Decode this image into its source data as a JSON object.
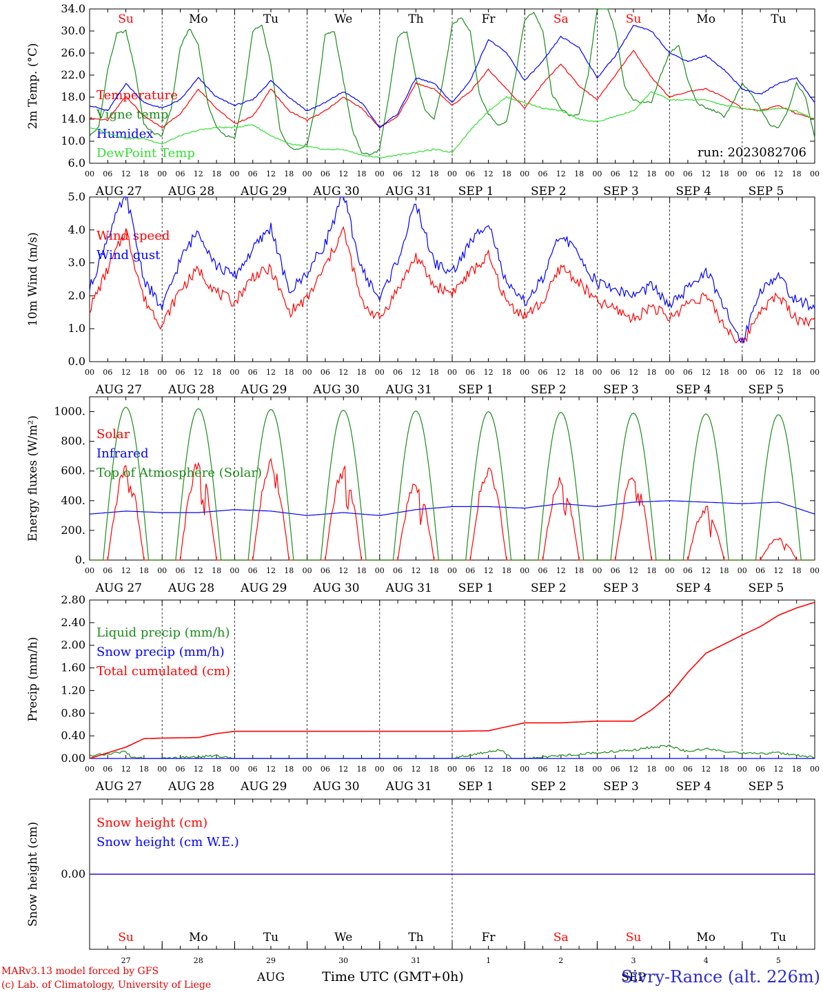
{
  "chart_data": [
    {
      "type": "line",
      "panel": "temperature",
      "ylabel": "2m Temp. (°C)",
      "ylim": [
        6.0,
        34.0
      ],
      "yticks": [
        "6.0",
        "10.0",
        "14.0",
        "18.0",
        "22.0",
        "26.0",
        "30.0",
        "34.0"
      ],
      "ytick_values": [
        6,
        10,
        14,
        18,
        22,
        26,
        30,
        34
      ],
      "dashed_y": [],
      "days_top": [
        {
          "label": "Su",
          "color": "#ff0000"
        },
        {
          "label": "Mo",
          "color": "#000000"
        },
        {
          "label": "Tu",
          "color": "#000000"
        },
        {
          "label": "We",
          "color": "#000000"
        },
        {
          "label": "Th",
          "color": "#000000"
        },
        {
          "label": "Fr",
          "color": "#000000"
        },
        {
          "label": "Sa",
          "color": "#ff0000"
        },
        {
          "label": "Su",
          "color": "#ff0000"
        },
        {
          "label": "Mo",
          "color": "#000000"
        },
        {
          "label": "Tu",
          "color": "#000000"
        }
      ],
      "annotation": "run: 2023082706",
      "series": [
        {
          "name": "Temperature",
          "color": "#ff0000",
          "x": [
            0,
            6,
            12,
            18,
            24,
            30,
            36,
            42,
            48,
            54,
            60,
            66,
            72,
            78,
            84,
            90,
            96,
            102,
            108,
            114,
            120,
            126,
            132,
            138,
            144,
            150,
            156,
            162,
            168,
            174,
            180,
            186,
            192,
            198,
            204,
            210,
            216,
            222,
            228,
            234,
            240
          ],
          "y": [
            14.2,
            13.8,
            18.2,
            14.5,
            12.5,
            15.0,
            19.5,
            16.0,
            13.2,
            14.5,
            19.5,
            15.5,
            13.8,
            15.5,
            18.0,
            16.0,
            12.5,
            14.5,
            20.5,
            19.5,
            16.5,
            19.0,
            23.0,
            19.5,
            16.0,
            20.5,
            24.0,
            20.0,
            17.5,
            22.0,
            26.5,
            21.5,
            18.0,
            19.0,
            19.5,
            18.0,
            16.0,
            15.5,
            16.5,
            15.0,
            14.0
          ]
        },
        {
          "name": "Vigne temp",
          "color": "#1a8c1a",
          "x": [
            0,
            3,
            6,
            9,
            12,
            15,
            18,
            21,
            24,
            27,
            30,
            33,
            36,
            39,
            42,
            45,
            48,
            51,
            54,
            57,
            60,
            63,
            66,
            69,
            72,
            75,
            78,
            81,
            84,
            87,
            90,
            93,
            96,
            99,
            102,
            105,
            108,
            111,
            114,
            117,
            120,
            123,
            126,
            129,
            132,
            135,
            138,
            141,
            144,
            147,
            150,
            153,
            156,
            159,
            162,
            165,
            168,
            171,
            174,
            177,
            180,
            183,
            186,
            189,
            192,
            195,
            198,
            201,
            204,
            207,
            210,
            213,
            216,
            219,
            222,
            225,
            228,
            231,
            234,
            237,
            240
          ],
          "y": [
            11.0,
            12.5,
            23.0,
            29.5,
            30.0,
            23.0,
            13.0,
            11.5,
            11.0,
            16.0,
            27.0,
            30.5,
            27.5,
            17.0,
            12.5,
            11.0,
            10.5,
            18.0,
            30.0,
            31.0,
            24.0,
            12.0,
            9.0,
            8.5,
            9.5,
            17.0,
            29.5,
            30.0,
            21.0,
            12.0,
            8.0,
            7.5,
            8.5,
            18.0,
            29.0,
            30.0,
            21.5,
            15.5,
            14.0,
            21.0,
            31.0,
            32.5,
            30.0,
            18.5,
            15.0,
            13.0,
            13.5,
            22.0,
            32.0,
            33.5,
            30.0,
            18.5,
            16.0,
            14.5,
            15.0,
            22.0,
            34.0,
            35.0,
            30.0,
            20.0,
            17.5,
            17.0,
            17.0,
            22.0,
            26.0,
            27.5,
            21.0,
            17.0,
            16.0,
            15.5,
            14.5,
            17.0,
            20.5,
            18.5,
            16.0,
            13.0,
            12.5,
            15.5,
            20.5,
            18.0,
            10.5
          ]
        },
        {
          "name": "Humidex",
          "color": "#0000ff",
          "x": [
            0,
            6,
            12,
            18,
            24,
            30,
            36,
            42,
            48,
            54,
            60,
            66,
            72,
            78,
            84,
            90,
            96,
            102,
            108,
            114,
            120,
            126,
            132,
            138,
            144,
            150,
            156,
            162,
            168,
            174,
            180,
            186,
            192,
            198,
            204,
            210,
            216,
            222,
            228,
            234,
            240
          ],
          "y": [
            16.5,
            15.5,
            20.5,
            17.0,
            16.0,
            17.5,
            21.5,
            18.0,
            16.5,
            17.5,
            21.0,
            18.0,
            15.5,
            17.0,
            19.0,
            17.0,
            12.5,
            15.0,
            21.5,
            20.5,
            17.0,
            21.0,
            28.5,
            26.0,
            21.0,
            24.5,
            29.0,
            27.0,
            21.5,
            25.5,
            31.0,
            30.0,
            26.0,
            24.5,
            25.5,
            23.0,
            19.5,
            18.5,
            20.5,
            21.5,
            17.0
          ]
        },
        {
          "name": "DewPoint Temp",
          "color": "#33dd33",
          "x": [
            0,
            6,
            12,
            18,
            24,
            30,
            36,
            42,
            48,
            54,
            60,
            66,
            72,
            78,
            84,
            90,
            96,
            102,
            108,
            114,
            120,
            126,
            132,
            138,
            144,
            150,
            156,
            162,
            168,
            174,
            180,
            186,
            192,
            198,
            204,
            210,
            216,
            222,
            228,
            234,
            240
          ],
          "y": [
            12.5,
            11.5,
            10.5,
            10.5,
            9.5,
            11.0,
            12.0,
            12.5,
            12.5,
            13.0,
            11.0,
            9.5,
            9.0,
            8.5,
            8.5,
            7.5,
            7.0,
            7.5,
            8.0,
            8.5,
            8.0,
            12.0,
            15.5,
            18.0,
            17.0,
            16.0,
            15.5,
            14.0,
            13.5,
            14.5,
            15.5,
            19.0,
            17.5,
            17.5,
            17.5,
            16.5,
            16.0,
            15.5,
            16.0,
            15.5,
            14.0
          ]
        }
      ]
    },
    {
      "type": "line",
      "panel": "wind",
      "ylabel": "10m Wind (m/s)",
      "ylim": [
        0.0,
        5.0
      ],
      "yticks": [
        "0.0",
        "1.0",
        "2.0",
        "3.0",
        "4.0",
        "5.0"
      ],
      "ytick_values": [
        0,
        1,
        2,
        3,
        4,
        5
      ],
      "dashed_y": [
        5.0
      ],
      "series": [
        {
          "name": "Wind speed",
          "color": "#ff0000",
          "x": [
            0,
            6,
            12,
            18,
            24,
            30,
            36,
            42,
            48,
            54,
            60,
            66,
            72,
            78,
            84,
            90,
            96,
            102,
            108,
            114,
            120,
            126,
            132,
            138,
            144,
            150,
            156,
            162,
            168,
            174,
            180,
            186,
            192,
            198,
            204,
            210,
            216,
            222,
            228,
            234,
            240
          ],
          "y": [
            1.6,
            2.8,
            4.0,
            1.9,
            1.1,
            2.2,
            2.8,
            2.1,
            1.8,
            2.6,
            2.8,
            1.5,
            1.9,
            2.9,
            4.0,
            1.8,
            1.3,
            2.2,
            3.2,
            2.3,
            2.1,
            2.7,
            3.2,
            1.8,
            1.4,
            1.8,
            2.9,
            2.4,
            1.8,
            1.6,
            1.3,
            1.7,
            1.3,
            1.8,
            2.0,
            1.1,
            0.5,
            1.6,
            2.0,
            1.3,
            1.2
          ]
        },
        {
          "name": "Wind gust",
          "color": "#0000ff",
          "x": [
            0,
            6,
            12,
            18,
            24,
            30,
            36,
            42,
            48,
            54,
            60,
            66,
            72,
            78,
            84,
            90,
            96,
            102,
            108,
            114,
            120,
            126,
            132,
            138,
            144,
            150,
            156,
            162,
            168,
            174,
            180,
            186,
            192,
            198,
            204,
            210,
            216,
            222,
            228,
            234,
            240
          ],
          "y": [
            2.2,
            3.8,
            5.1,
            2.5,
            1.6,
            3.1,
            4.0,
            2.9,
            2.6,
            3.4,
            4.1,
            2.1,
            2.7,
            3.6,
            5.1,
            2.8,
            1.9,
            3.1,
            4.8,
            3.0,
            2.7,
            3.6,
            4.3,
            2.3,
            1.8,
            2.5,
            3.9,
            3.2,
            2.4,
            2.2,
            2.0,
            2.3,
            1.7,
            2.2,
            2.8,
            1.6,
            0.6,
            2.2,
            2.6,
            1.8,
            1.7
          ]
        }
      ]
    },
    {
      "type": "line",
      "panel": "energy",
      "ylabel": "Energy fluxes (W/m²)",
      "ylim": [
        0,
        1100
      ],
      "yticks": [
        "0.",
        "200.",
        "400.",
        "600.",
        "800.",
        "1000."
      ],
      "ytick_values": [
        0,
        200,
        400,
        600,
        800,
        1000
      ],
      "dashed_y": [],
      "series": [
        {
          "name": "Solar",
          "color": "#ff0000",
          "peaks": [
            690,
            740,
            740,
            700,
            580,
            710,
            620,
            650,
            400,
            170
          ],
          "dips": [
            150,
            600,
            500,
            520,
            520,
            620,
            620,
            600,
            420,
            150
          ]
        },
        {
          "name": "Infrared",
          "color": "#0000ff",
          "x": [
            0,
            12,
            24,
            36,
            48,
            60,
            72,
            84,
            96,
            108,
            120,
            132,
            144,
            156,
            168,
            180,
            192,
            204,
            216,
            228,
            240
          ],
          "y": [
            310,
            330,
            320,
            320,
            340,
            330,
            300,
            320,
            300,
            340,
            360,
            360,
            350,
            380,
            360,
            390,
            400,
            390,
            380,
            390,
            310
          ]
        },
        {
          "name": "Top of Atmosphere (Solar)",
          "color": "#1a8c1a",
          "peaks": [
            1030,
            1020,
            1015,
            1010,
            1005,
            1000,
            995,
            990,
            985,
            980
          ]
        }
      ]
    },
    {
      "type": "line",
      "panel": "precip",
      "ylabel": "Precip (mm/h)",
      "ylim": [
        0.0,
        2.8
      ],
      "yticks": [
        "0.00",
        "0.40",
        "0.80",
        "1.20",
        "1.60",
        "2.00",
        "2.40",
        "2.80"
      ],
      "ytick_values": [
        0.0,
        0.4,
        0.8,
        1.2,
        1.6,
        2.0,
        2.4,
        2.8
      ],
      "dashed_y": [],
      "series": [
        {
          "name": "Liquid precip (mm/h)",
          "color": "#1a8c1a",
          "x": [
            0,
            6,
            12,
            14,
            18,
            24,
            36,
            42,
            48,
            60,
            120,
            132,
            136,
            140,
            144,
            180,
            186,
            192,
            198,
            204,
            210,
            216,
            222,
            228,
            234,
            240
          ],
          "y": [
            0.05,
            0.08,
            0.12,
            0.02,
            0.0,
            0.0,
            0.03,
            0.05,
            0.0,
            0.0,
            0.0,
            0.12,
            0.15,
            0.0,
            0.0,
            0.15,
            0.2,
            0.22,
            0.12,
            0.18,
            0.12,
            0.1,
            0.08,
            0.1,
            0.06,
            0.02
          ]
        },
        {
          "name": "Snow precip (mm/h)",
          "color": "#0000ff",
          "x": [
            0,
            240
          ],
          "y": [
            0.0,
            0.0
          ]
        },
        {
          "name": "Total cumulated (cm)",
          "color": "#ff0000",
          "x": [
            0,
            6,
            12,
            18,
            24,
            36,
            42,
            48,
            84,
            96,
            120,
            132,
            144,
            156,
            168,
            180,
            186,
            192,
            198,
            204,
            210,
            216,
            222,
            228,
            234,
            240
          ],
          "y": [
            0.0,
            0.1,
            0.2,
            0.35,
            0.36,
            0.37,
            0.44,
            0.48,
            0.48,
            0.48,
            0.48,
            0.49,
            0.63,
            0.63,
            0.66,
            0.66,
            0.86,
            1.13,
            1.52,
            1.86,
            2.02,
            2.18,
            2.33,
            2.53,
            2.66,
            2.76
          ]
        }
      ]
    },
    {
      "type": "line",
      "panel": "snow",
      "ylabel": "Snow height (cm)",
      "ylim": [
        -1.0,
        1.0
      ],
      "yticks": [
        "0.00"
      ],
      "ytick_values": [
        0.0
      ],
      "dashed_y": [],
      "series": [
        {
          "name": "Snow height (cm)",
          "color": "#ff0000",
          "x": [
            0,
            240
          ],
          "y": [
            0.0,
            0.0
          ]
        },
        {
          "name": "Snow height (cm W.E.)",
          "color": "#0000ff",
          "x": [
            0,
            240
          ],
          "y": [
            0.0,
            0.0
          ]
        }
      ]
    }
  ],
  "x_axis": {
    "hour_labels": [
      "00",
      "06",
      "12",
      "18"
    ],
    "final_hour_label": "00",
    "date_labels": [
      "AUG 27",
      "AUG 28",
      "AUG 29",
      "AUG 30",
      "AUG 31",
      "SEP  1",
      "SEP  2",
      "SEP  3",
      "SEP  4",
      "SEP  5"
    ],
    "bottom_day_numbers": [
      "27",
      "28",
      "29",
      "30",
      "31",
      "1",
      "2",
      "3",
      "4",
      "5"
    ],
    "bottom_month_labels": [
      "AUG",
      "SEP"
    ],
    "xlabel": "Time UTC (GMT+0h)"
  },
  "footer": {
    "credit_line1": "MARv3.13 model forced by GFS",
    "credit_line2": "(c) Lab. of Climatology, University of Liege",
    "station": "Sivry-Rance (alt. 226m)"
  }
}
